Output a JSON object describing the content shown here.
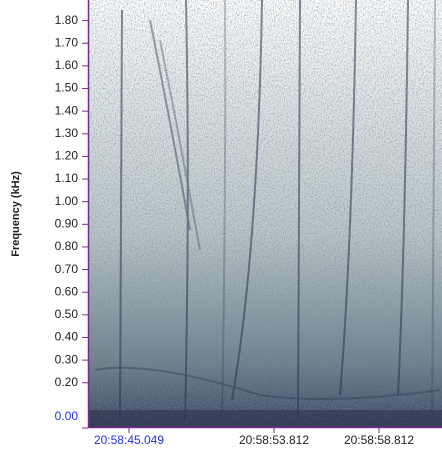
{
  "chart_data": {
    "type": "spectrogram",
    "y_label": "Frequency (kHz)",
    "ylim": [
      0,
      1.9
    ],
    "yticks": [
      {
        "value": 0,
        "label": "0.00"
      },
      {
        "value": 0.2,
        "label": "0.20"
      },
      {
        "value": 0.3,
        "label": "0.30"
      },
      {
        "value": 0.4,
        "label": "0.40"
      },
      {
        "value": 0.5,
        "label": "0.50"
      },
      {
        "value": 0.6,
        "label": "0.60"
      },
      {
        "value": 0.7,
        "label": "0.70"
      },
      {
        "value": 0.8,
        "label": "0.80"
      },
      {
        "value": 0.9,
        "label": "0.90"
      },
      {
        "value": 1.0,
        "label": "1.00"
      },
      {
        "value": 1.1,
        "label": "1.10"
      },
      {
        "value": 1.2,
        "label": "1.20"
      },
      {
        "value": 1.3,
        "label": "1.30"
      },
      {
        "value": 1.4,
        "label": "1.40"
      },
      {
        "value": 1.5,
        "label": "1.50"
      },
      {
        "value": 1.6,
        "label": "1.60"
      },
      {
        "value": 1.7,
        "label": "1.70"
      },
      {
        "value": 1.8,
        "label": "1.80"
      }
    ],
    "x_tick_labels": [
      "20:58:45.049",
      "20:58:53.812",
      "20:58:58.812"
    ],
    "color": "#2b3450"
  }
}
